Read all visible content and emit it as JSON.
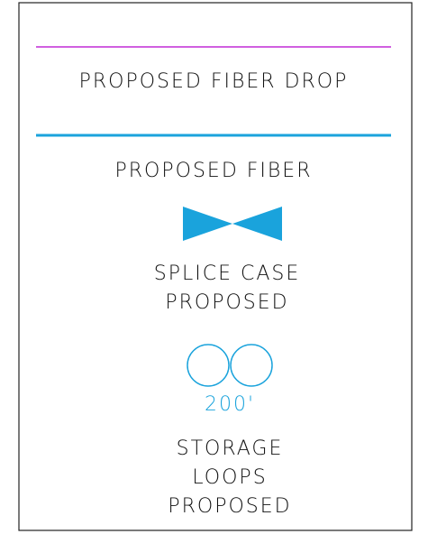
{
  "legend": {
    "items": [
      {
        "label": "PROPOSED FIBER DROP"
      },
      {
        "label": "PROPOSED FIBER"
      },
      {
        "label": [
          "SPLICE CASE",
          "PROPOSED"
        ]
      },
      {
        "symbol_label": "200'",
        "label": [
          "STORAGE",
          "LOOPS",
          "PROPOSED"
        ]
      }
    ]
  }
}
